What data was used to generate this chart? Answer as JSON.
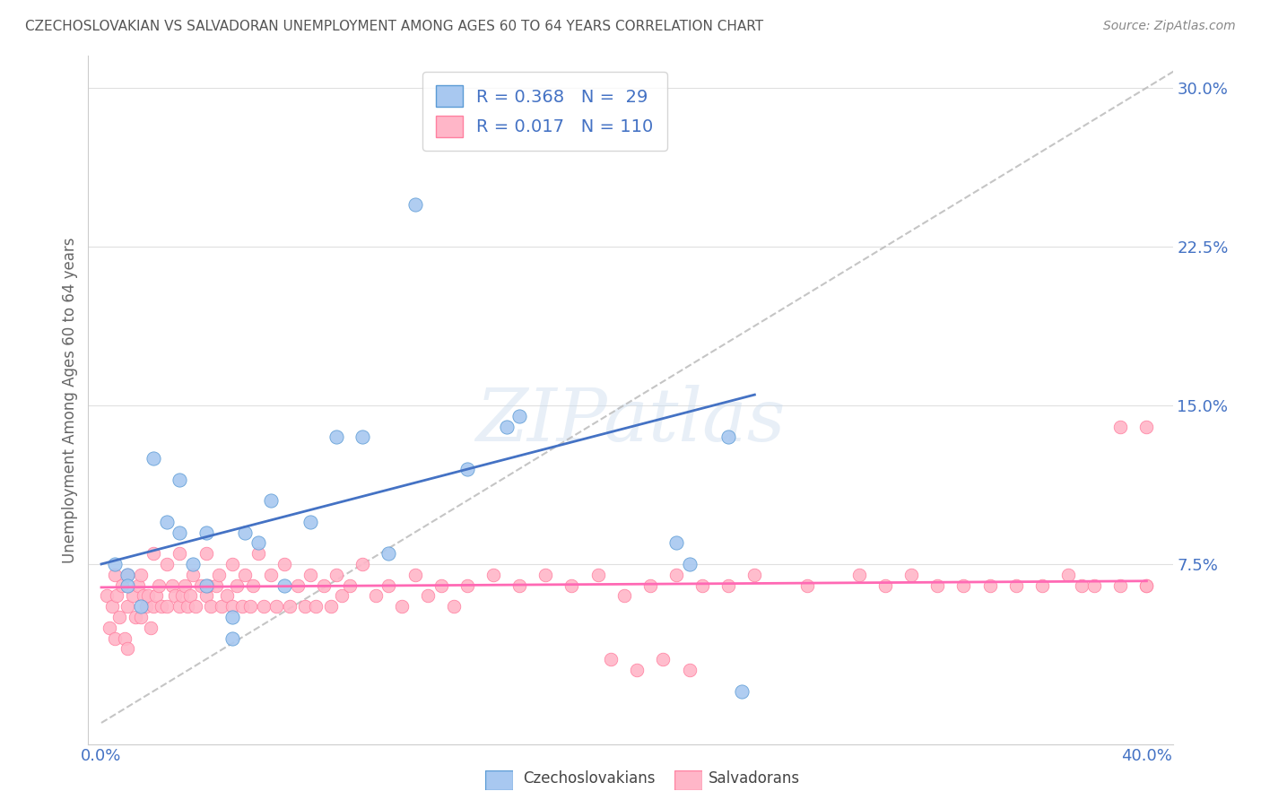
{
  "title": "CZECHOSLOVAKIAN VS SALVADORAN UNEMPLOYMENT AMONG AGES 60 TO 64 YEARS CORRELATION CHART",
  "source": "Source: ZipAtlas.com",
  "ylabel": "Unemployment Among Ages 60 to 64 years",
  "xlim": [
    -0.005,
    0.41
  ],
  "ylim": [
    -0.01,
    0.315
  ],
  "ytick_vals": [
    0.075,
    0.15,
    0.225,
    0.3
  ],
  "ytick_labels": [
    "7.5%",
    "15.0%",
    "22.5%",
    "30.0%"
  ],
  "xtick_vals": [
    0.0,
    0.4
  ],
  "xtick_labels": [
    "0.0%",
    "40.0%"
  ],
  "czech_color": "#A8C8F0",
  "czech_edge": "#5B9BD5",
  "salvadoran_color": "#FFB6C8",
  "salvadoran_edge": "#FF80A0",
  "czech_R": 0.368,
  "czech_N": 29,
  "salvadoran_R": 0.017,
  "salvadoran_N": 110,
  "trend_line_czech_color": "#4472C4",
  "trend_line_salvadoran_color": "#FF69B4",
  "trend_line_dashed_color": "#BBBBBB",
  "watermark_text": "ZIPatlas",
  "background_color": "#FFFFFF",
  "grid_color": "#E0E0E0",
  "title_color": "#555555",
  "axis_label_color": "#4472C4",
  "source_color": "#888888",
  "legend_text_color": "#4472C4",
  "czech_x": [
    0.005,
    0.01,
    0.01,
    0.015,
    0.02,
    0.025,
    0.03,
    0.035,
    0.04,
    0.04,
    0.05,
    0.05,
    0.055,
    0.06,
    0.065,
    0.07,
    0.08,
    0.09,
    0.1,
    0.11,
    0.12,
    0.14,
    0.155,
    0.16,
    0.22,
    0.225,
    0.24,
    0.245,
    0.03
  ],
  "czech_y": [
    0.075,
    0.07,
    0.065,
    0.055,
    0.125,
    0.095,
    0.09,
    0.075,
    0.09,
    0.065,
    0.05,
    0.04,
    0.09,
    0.085,
    0.105,
    0.065,
    0.095,
    0.135,
    0.135,
    0.08,
    0.245,
    0.12,
    0.14,
    0.145,
    0.085,
    0.075,
    0.135,
    0.015,
    0.115
  ],
  "salv_x": [
    0.002,
    0.003,
    0.004,
    0.005,
    0.005,
    0.006,
    0.007,
    0.008,
    0.009,
    0.01,
    0.01,
    0.01,
    0.012,
    0.013,
    0.014,
    0.015,
    0.015,
    0.016,
    0.017,
    0.018,
    0.019,
    0.02,
    0.02,
    0.021,
    0.022,
    0.023,
    0.025,
    0.025,
    0.027,
    0.028,
    0.03,
    0.03,
    0.031,
    0.032,
    0.033,
    0.034,
    0.035,
    0.036,
    0.038,
    0.04,
    0.04,
    0.041,
    0.042,
    0.044,
    0.045,
    0.046,
    0.048,
    0.05,
    0.05,
    0.052,
    0.054,
    0.055,
    0.057,
    0.058,
    0.06,
    0.062,
    0.065,
    0.067,
    0.07,
    0.072,
    0.075,
    0.078,
    0.08,
    0.082,
    0.085,
    0.088,
    0.09,
    0.092,
    0.095,
    0.1,
    0.105,
    0.11,
    0.115,
    0.12,
    0.125,
    0.13,
    0.135,
    0.14,
    0.15,
    0.16,
    0.17,
    0.18,
    0.19,
    0.2,
    0.21,
    0.22,
    0.23,
    0.24,
    0.25,
    0.27,
    0.29,
    0.3,
    0.31,
    0.32,
    0.33,
    0.34,
    0.35,
    0.36,
    0.37,
    0.375,
    0.38,
    0.39,
    0.39,
    0.4,
    0.4,
    0.4,
    0.195,
    0.205,
    0.215,
    0.225
  ],
  "salv_y": [
    0.06,
    0.045,
    0.055,
    0.07,
    0.04,
    0.06,
    0.05,
    0.065,
    0.04,
    0.07,
    0.055,
    0.035,
    0.06,
    0.05,
    0.065,
    0.07,
    0.05,
    0.06,
    0.055,
    0.06,
    0.045,
    0.08,
    0.055,
    0.06,
    0.065,
    0.055,
    0.075,
    0.055,
    0.065,
    0.06,
    0.08,
    0.055,
    0.06,
    0.065,
    0.055,
    0.06,
    0.07,
    0.055,
    0.065,
    0.08,
    0.06,
    0.065,
    0.055,
    0.065,
    0.07,
    0.055,
    0.06,
    0.075,
    0.055,
    0.065,
    0.055,
    0.07,
    0.055,
    0.065,
    0.08,
    0.055,
    0.07,
    0.055,
    0.075,
    0.055,
    0.065,
    0.055,
    0.07,
    0.055,
    0.065,
    0.055,
    0.07,
    0.06,
    0.065,
    0.075,
    0.06,
    0.065,
    0.055,
    0.07,
    0.06,
    0.065,
    0.055,
    0.065,
    0.07,
    0.065,
    0.07,
    0.065,
    0.07,
    0.06,
    0.065,
    0.07,
    0.065,
    0.065,
    0.07,
    0.065,
    0.07,
    0.065,
    0.07,
    0.065,
    0.065,
    0.065,
    0.065,
    0.065,
    0.07,
    0.065,
    0.065,
    0.14,
    0.065,
    0.14,
    0.065,
    0.065,
    0.03,
    0.025,
    0.03,
    0.025
  ]
}
